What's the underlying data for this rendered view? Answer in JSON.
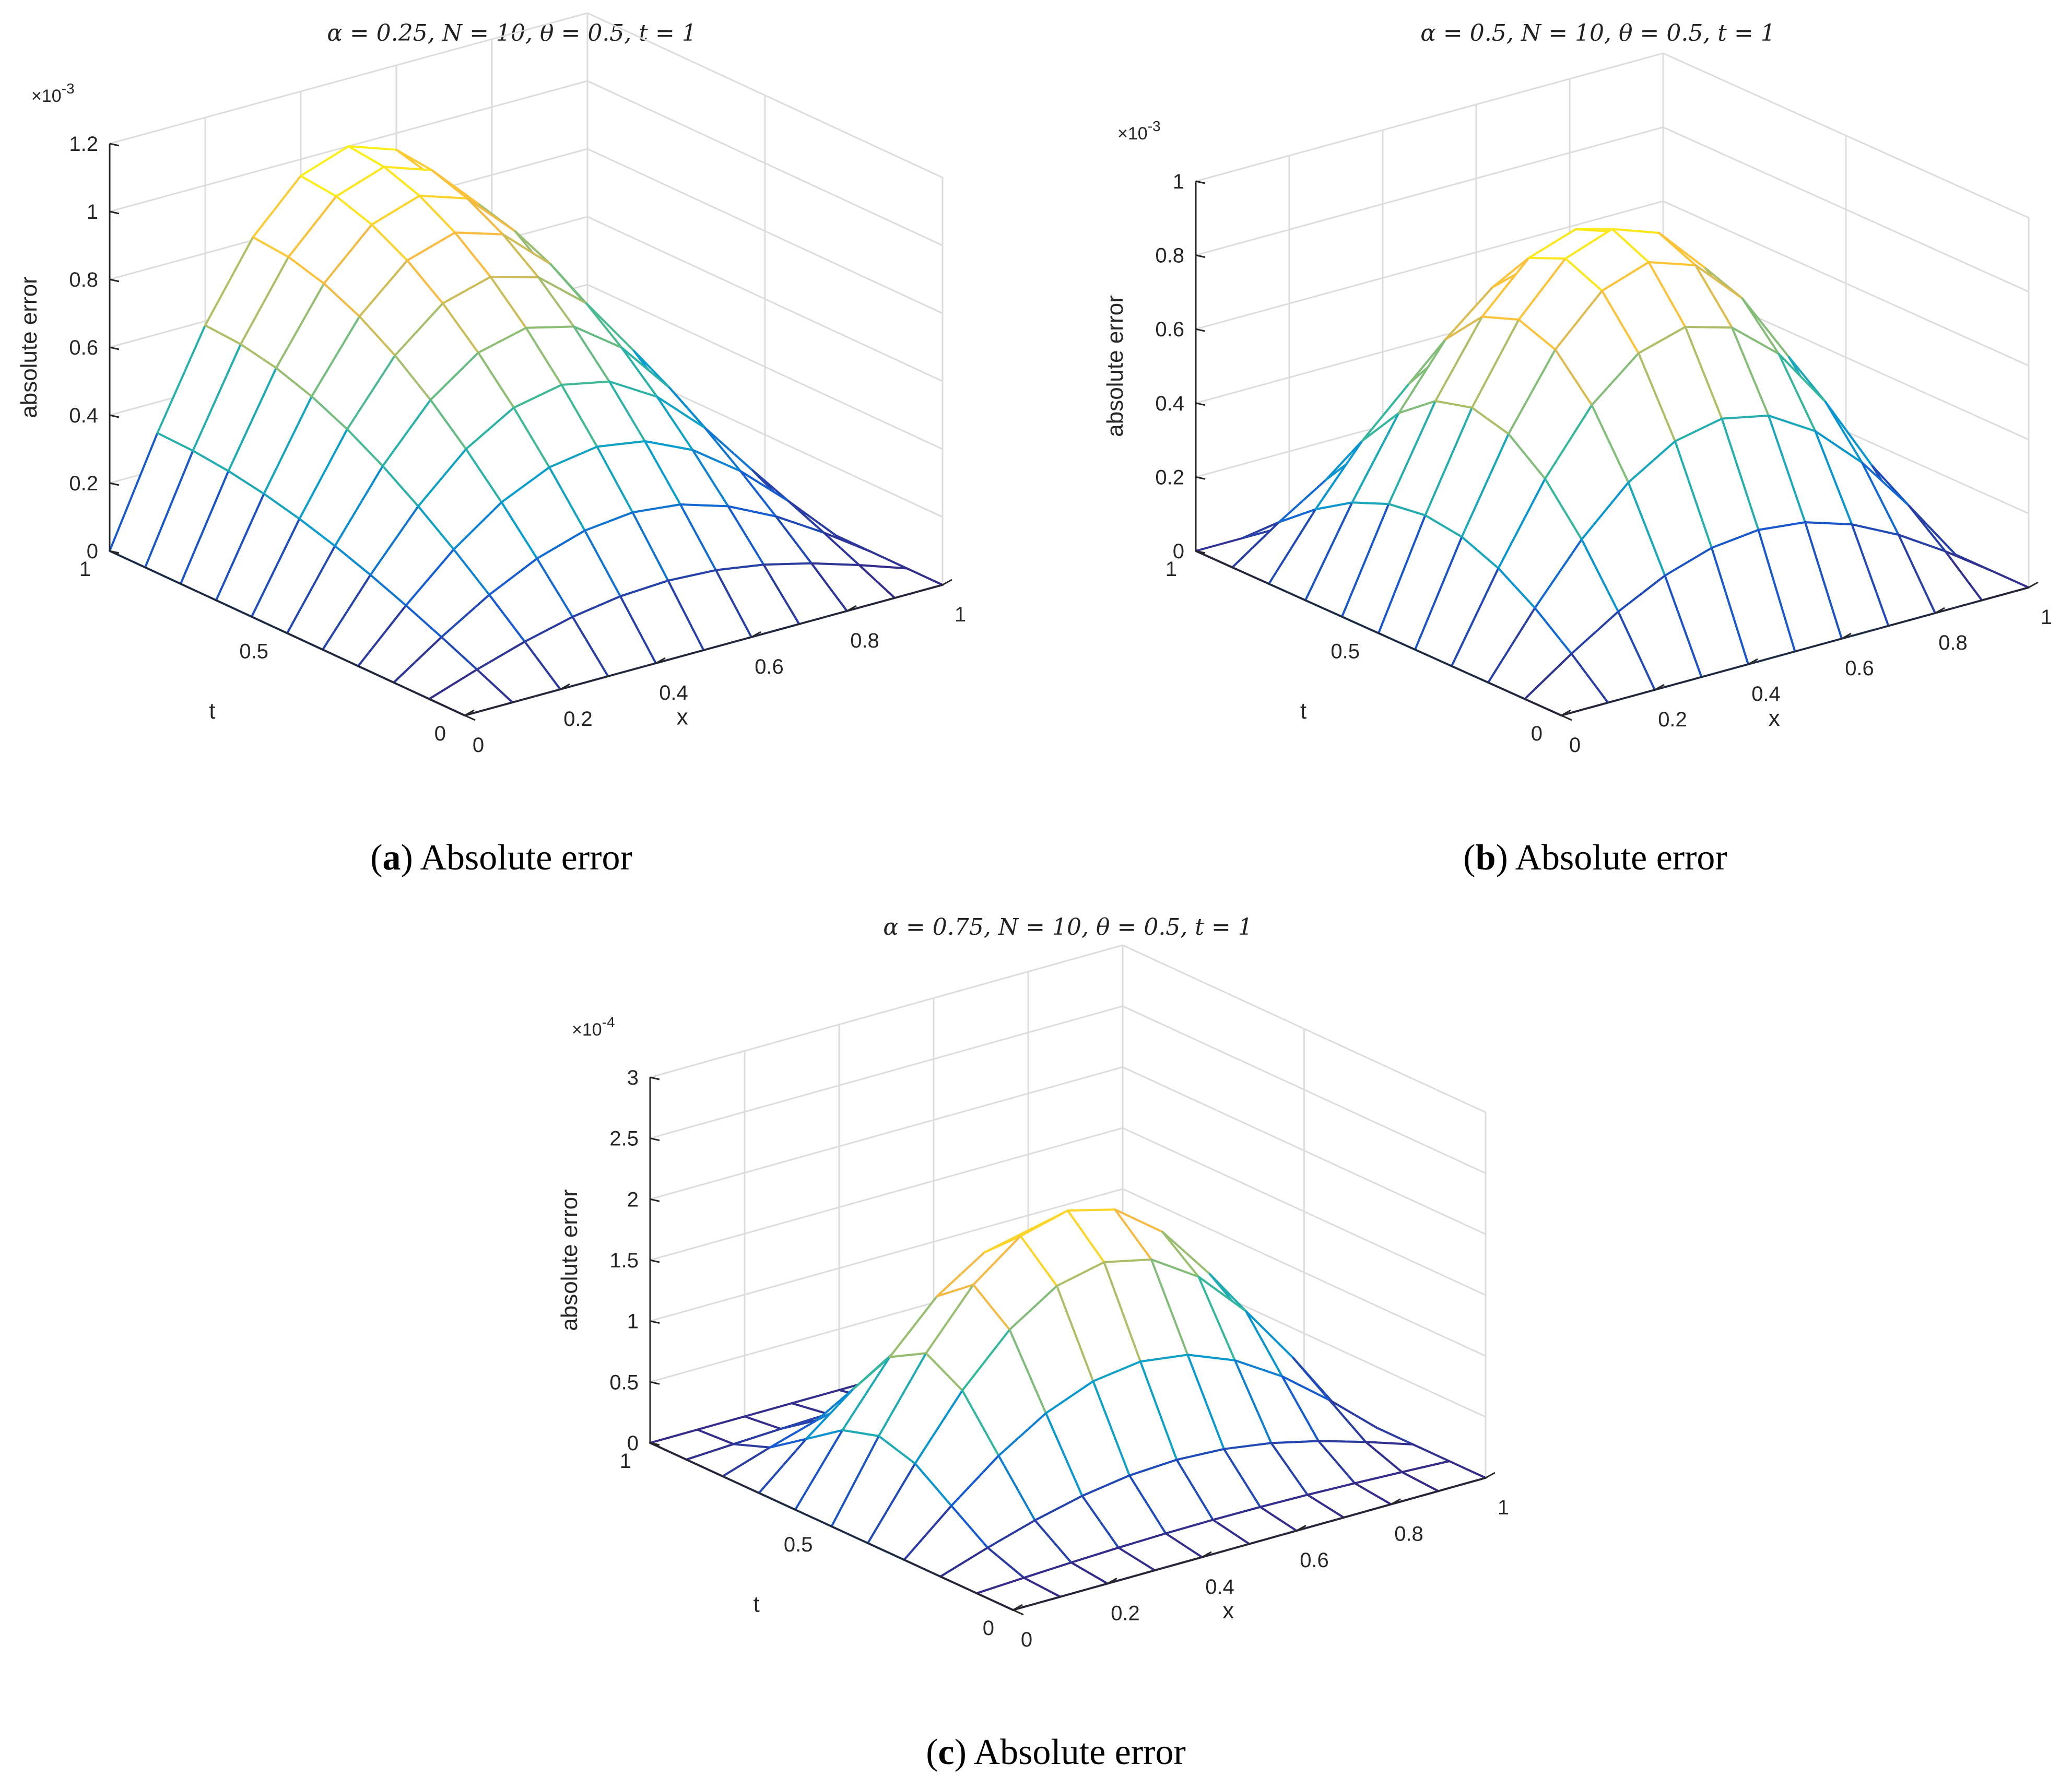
{
  "chart_data": [
    {
      "type": "surface",
      "title": "α = 0.25, N = 10, θ = 0.5, t = 1",
      "xlabel": "x",
      "ylabel": "t",
      "zlabel": "absolute error",
      "exponent_label": "×10",
      "exponent_power": "-3",
      "xlim": [
        0,
        1
      ],
      "ylim": [
        0,
        1
      ],
      "zlim": [
        0,
        1.2
      ],
      "x_ticks": [
        "0",
        "0.2",
        "0.4",
        "0.6",
        "0.8",
        "1"
      ],
      "y_ticks": [
        "0",
        "0.5",
        "1"
      ],
      "z_ticks": [
        "0",
        "0.2",
        "0.4",
        "0.6",
        "0.8",
        "1",
        "1.2"
      ],
      "z_tick_values": [
        0,
        0.2,
        0.4,
        0.6,
        0.8,
        1.0,
        1.2
      ],
      "grid": true,
      "grid_n": 10,
      "peak": 1.0,
      "surface_model": "peak · sin(πx) · sin(πt/2)",
      "caption_label": "a",
      "caption_text": "Absolute error"
    },
    {
      "type": "surface",
      "title": "α = 0.5, N = 10, θ = 0.5, t = 1",
      "xlabel": "x",
      "ylabel": "t",
      "zlabel": "absolute error",
      "exponent_label": "×10",
      "exponent_power": "-3",
      "xlim": [
        0,
        1
      ],
      "ylim": [
        0,
        1
      ],
      "zlim": [
        0,
        1
      ],
      "x_ticks": [
        "0",
        "0.2",
        "0.4",
        "0.6",
        "0.8",
        "1"
      ],
      "y_ticks": [
        "0",
        "0.5",
        "1"
      ],
      "z_ticks": [
        "0",
        "0.2",
        "0.4",
        "0.6",
        "0.8",
        "1"
      ],
      "z_tick_values": [
        0,
        0.2,
        0.4,
        0.6,
        0.8,
        1.0
      ],
      "grid": true,
      "grid_n": 10,
      "peak": 0.92,
      "surface_model": "peak · sin(πx) · sin(πt)",
      "caption_label": "b",
      "caption_text": "Absolute error"
    },
    {
      "type": "surface",
      "title": "α = 0.75, N = 10, θ = 0.5, t = 1",
      "xlabel": "x",
      "ylabel": "t",
      "zlabel": "absolute error",
      "exponent_label": "×10",
      "exponent_power": "-4",
      "xlim": [
        0,
        1
      ],
      "ylim": [
        0,
        1
      ],
      "zlim": [
        0,
        3
      ],
      "x_ticks": [
        "0",
        "0.2",
        "0.4",
        "0.6",
        "0.8",
        "1"
      ],
      "y_ticks": [
        "0",
        "0.5",
        "1"
      ],
      "z_ticks": [
        "0",
        "0.5",
        "1",
        "1.5",
        "2",
        "2.5",
        "3"
      ],
      "z_tick_values": [
        0,
        0.5,
        1.0,
        1.5,
        2.0,
        2.5,
        3.0
      ],
      "grid": true,
      "grid_n": 10,
      "peak": 2.05,
      "surface_model": "peak · sin(πx) · sin(πt)^3",
      "caption_label": "c",
      "caption_text": "Absolute error"
    }
  ]
}
